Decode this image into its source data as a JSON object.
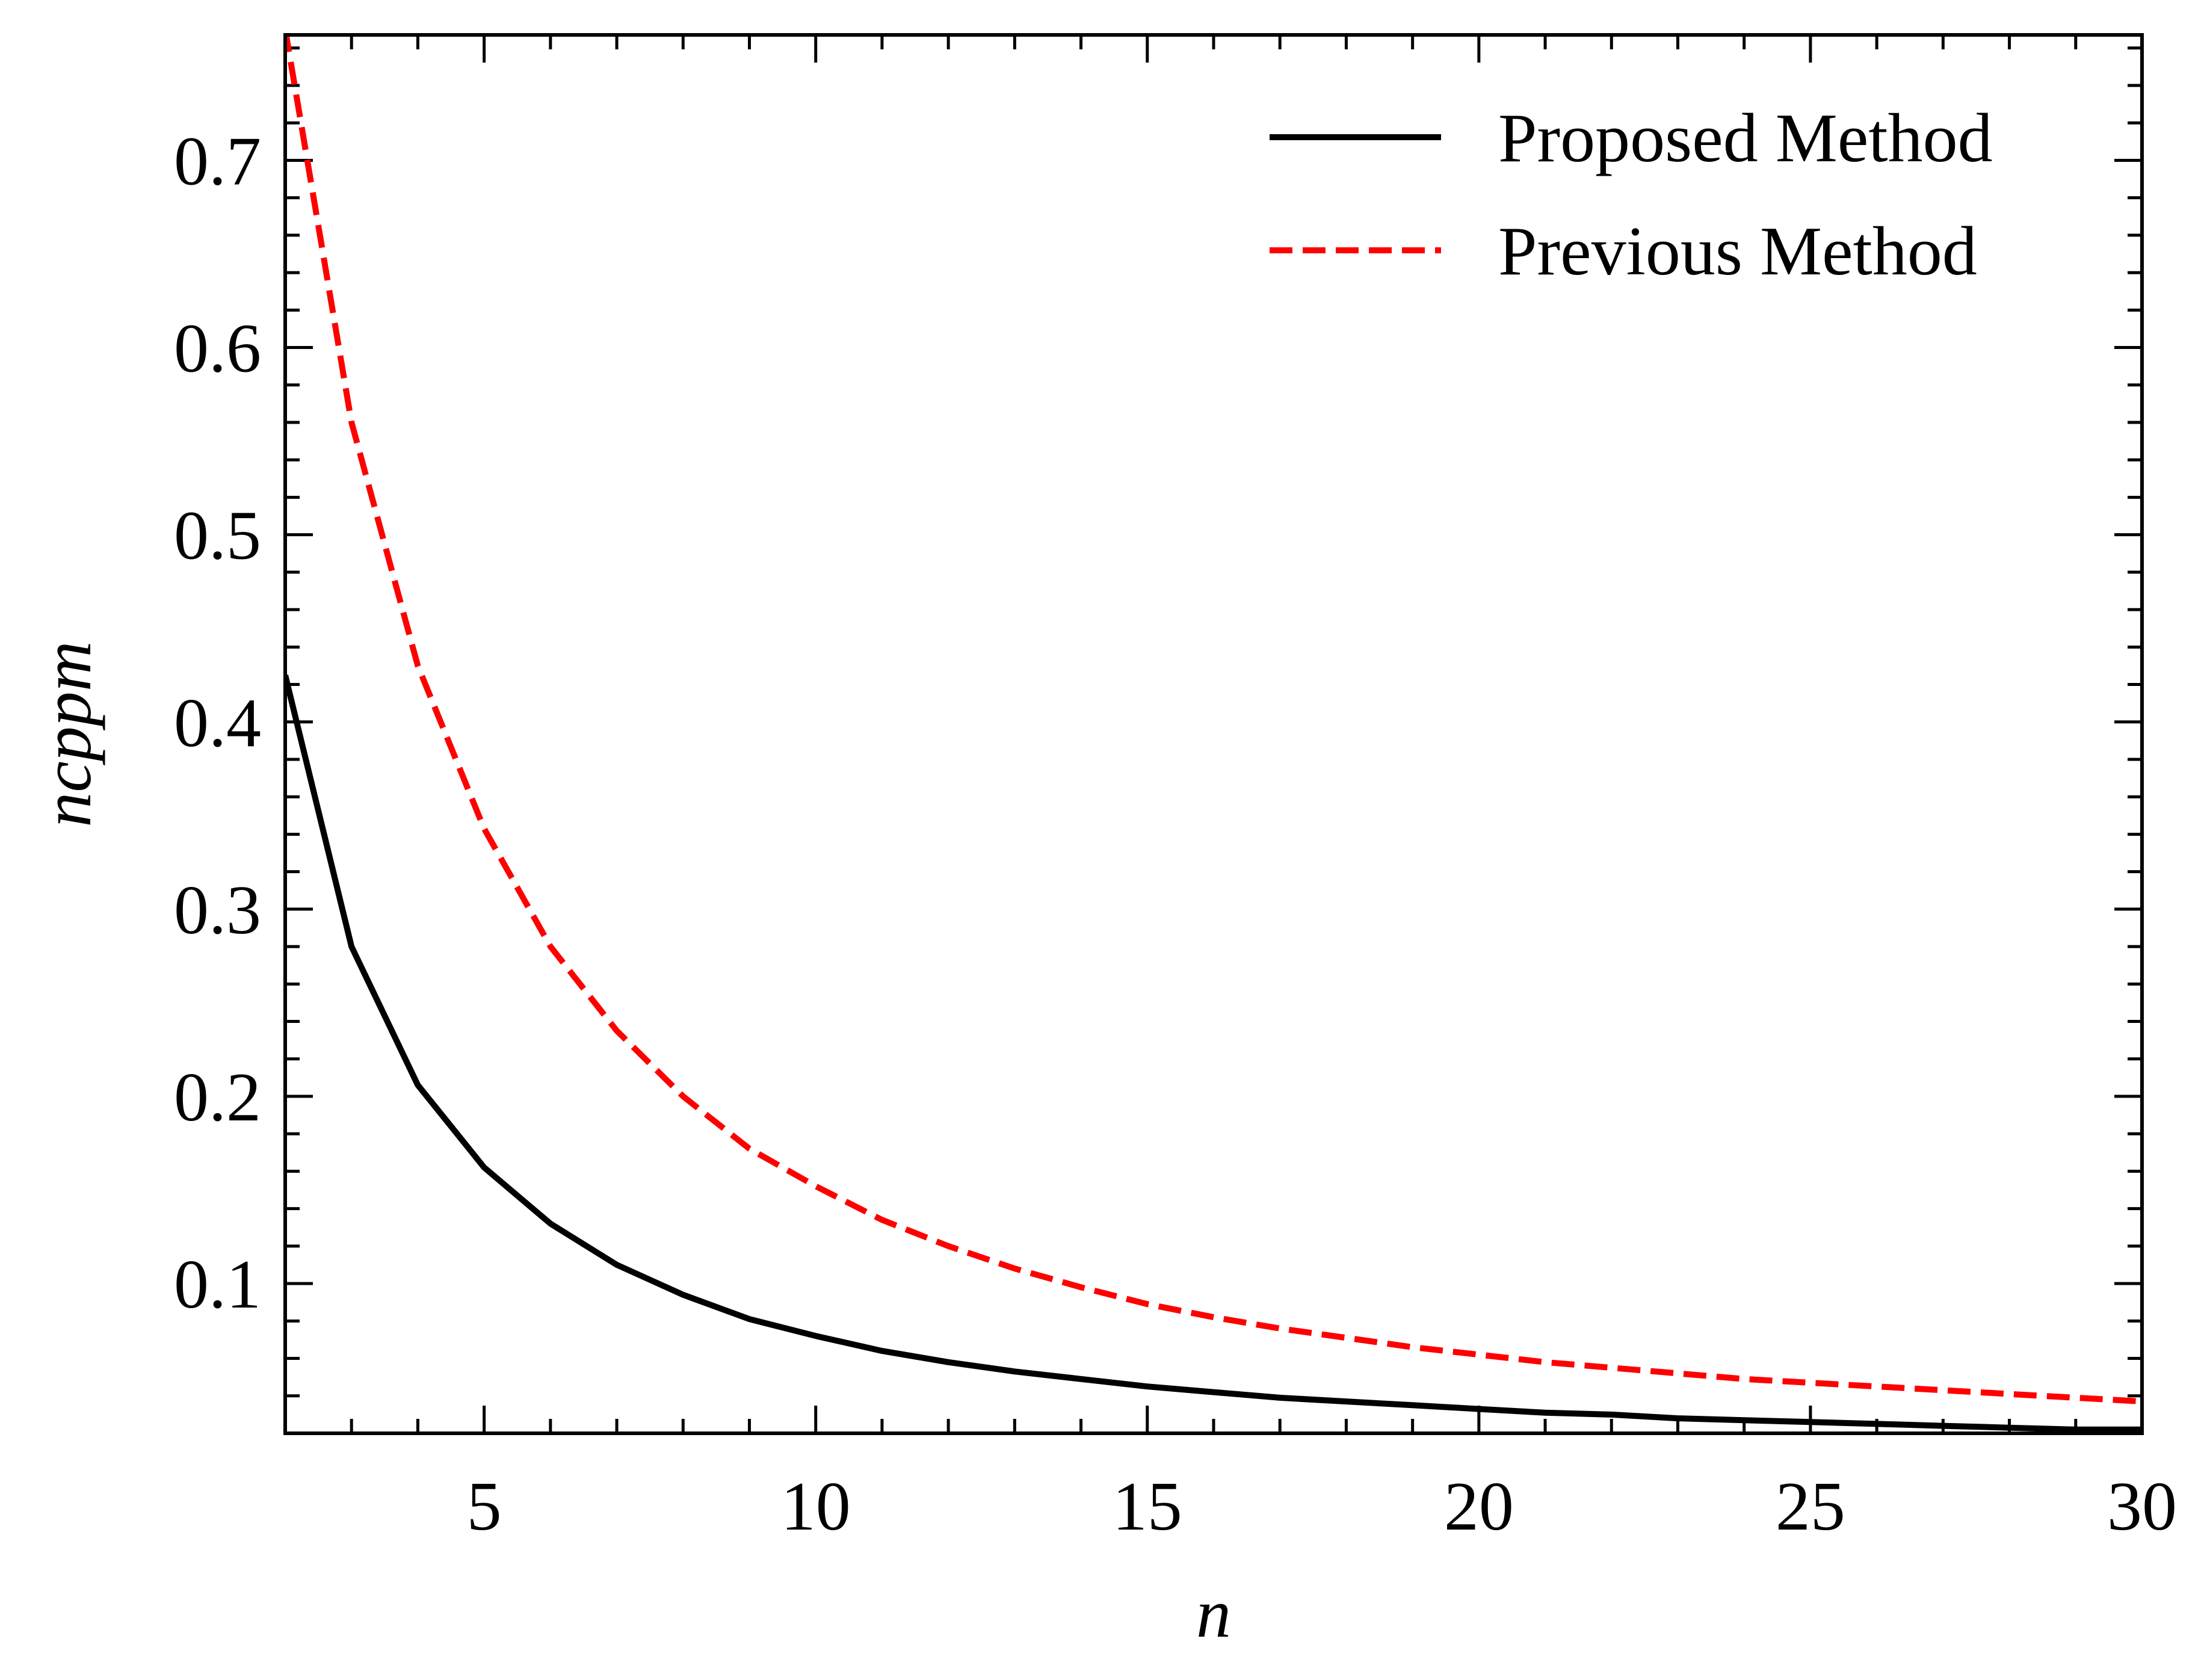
{
  "chart_data": {
    "type": "line",
    "title": "",
    "xlabel": "n",
    "ylabel": "ncppm",
    "xlim": [
      2,
      30
    ],
    "ylim": [
      0.02,
      0.767
    ],
    "xticks": [
      5,
      10,
      15,
      20,
      25,
      30
    ],
    "xtick_labels": [
      "5",
      "10",
      "15",
      "20",
      "25",
      "30"
    ],
    "yticks": [
      0.1,
      0.2,
      0.3,
      0.4,
      0.5,
      0.6,
      0.7
    ],
    "ytick_labels": [
      "0.1",
      "0.2",
      "0.3",
      "0.4",
      "0.5",
      "0.6",
      "0.7"
    ],
    "grid": false,
    "legend_position": "top-right",
    "x": [
      2,
      3,
      4,
      5,
      6,
      7,
      8,
      9,
      10,
      11,
      12,
      13,
      14,
      15,
      16,
      17,
      18,
      19,
      20,
      21,
      22,
      23,
      24,
      25,
      26,
      27,
      28,
      29,
      30
    ],
    "series": [
      {
        "name": "Proposed Method",
        "color": "#000000",
        "style": "solid",
        "values": [
          0.425,
          0.28,
          0.206,
          0.162,
          0.132,
          0.11,
          0.094,
          0.081,
          0.072,
          0.064,
          0.058,
          0.053,
          0.049,
          0.045,
          0.042,
          0.039,
          0.037,
          0.035,
          0.033,
          0.031,
          0.03,
          0.028,
          0.027,
          0.026,
          0.025,
          0.024,
          0.023,
          0.022,
          0.022
        ]
      },
      {
        "name": "Previous Method",
        "color": "#ff0000",
        "style": "dashed",
        "values": [
          0.77,
          0.56,
          0.43,
          0.343,
          0.28,
          0.235,
          0.2,
          0.172,
          0.152,
          0.134,
          0.12,
          0.108,
          0.098,
          0.089,
          0.082,
          0.076,
          0.071,
          0.066,
          0.062,
          0.058,
          0.055,
          0.052,
          0.049,
          0.047,
          0.045,
          0.043,
          0.041,
          0.039,
          0.037
        ]
      }
    ]
  }
}
